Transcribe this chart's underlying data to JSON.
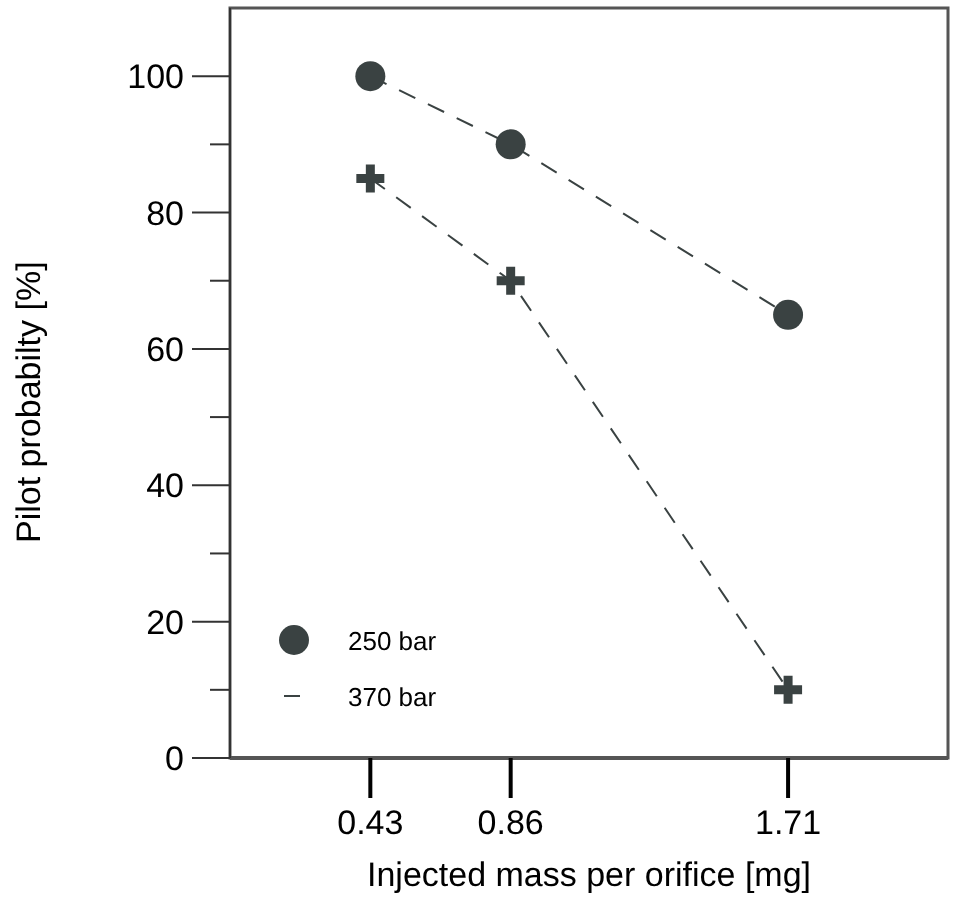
{
  "chart_data": {
    "type": "line",
    "xlabel": "Injected mass per orifice [mg]",
    "ylabel": "Pilot probabilty [%]",
    "x": [
      0.43,
      0.86,
      1.71
    ],
    "xlim": [
      0,
      2.2
    ],
    "xticks": [
      0.43,
      0.86,
      1.71
    ],
    "ylim": [
      0,
      110
    ],
    "yticks": [
      0,
      {
        "value": 10,
        "label": null
      },
      20,
      {
        "value": 30,
        "label": null
      },
      40,
      {
        "value": 50,
        "label": null
      },
      60,
      {
        "value": 70,
        "label": null
      },
      80,
      {
        "value": 90,
        "label": null
      },
      100
    ],
    "series": [
      {
        "name": "250 bar",
        "color": "#3a4242",
        "values": [
          100,
          90,
          65
        ],
        "marker": "circle",
        "line_style": "dashed"
      },
      {
        "name": "370 bar",
        "color": "#3a4242",
        "values": [
          85,
          70,
          10
        ],
        "marker": "cross",
        "line_style": "dashed"
      }
    ],
    "legend": "bottom left"
  }
}
